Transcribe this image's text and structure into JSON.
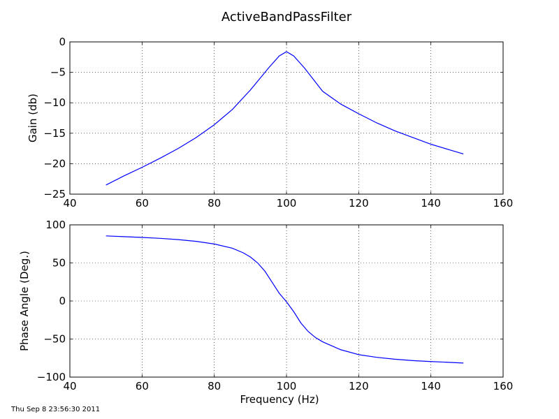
{
  "figure": {
    "title": "ActiveBandPassFilter",
    "timestamp": "Thu Sep  8 23:56:30 2011",
    "line_color": "#0000ff"
  },
  "chart_data": [
    {
      "type": "line",
      "title": "",
      "xlabel": "",
      "ylabel": "Gain (db)",
      "xlim": [
        40,
        160
      ],
      "ylim": [
        -25,
        0
      ],
      "xticks": [
        40,
        60,
        80,
        100,
        120,
        140,
        160
      ],
      "yticks": [
        -25,
        -20,
        -15,
        -10,
        -5,
        0
      ],
      "xtick_labels": [
        "40",
        "60",
        "80",
        "100",
        "120",
        "140",
        "160"
      ],
      "ytick_labels": [
        "−25",
        "−20",
        "−15",
        "−10",
        "−5",
        "0"
      ],
      "grid": true,
      "series": [
        {
          "x": [
            50,
            55,
            60,
            65,
            70,
            75,
            80,
            85,
            90,
            95,
            98,
            100,
            102,
            105,
            110,
            115,
            120,
            125,
            130,
            135,
            140,
            145,
            149
          ],
          "y": [
            -23.5,
            -22.0,
            -20.6,
            -19.1,
            -17.5,
            -15.7,
            -13.6,
            -11.1,
            -7.9,
            -4.3,
            -2.3,
            -1.6,
            -2.3,
            -4.3,
            -8.1,
            -10.2,
            -11.8,
            -13.3,
            -14.6,
            -15.7,
            -16.8,
            -17.7,
            -18.4
          ]
        }
      ]
    },
    {
      "type": "line",
      "title": "",
      "xlabel": "Frequency (Hz)",
      "ylabel": "Phase Angle (Deg.)",
      "xlim": [
        40,
        160
      ],
      "ylim": [
        -100,
        100
      ],
      "xticks": [
        40,
        60,
        80,
        100,
        120,
        140,
        160
      ],
      "yticks": [
        -100,
        -50,
        0,
        50,
        100
      ],
      "xtick_labels": [
        "40",
        "60",
        "80",
        "100",
        "120",
        "140",
        "160"
      ],
      "ytick_labels": [
        "−100",
        "−50",
        "0",
        "50",
        "100"
      ],
      "grid": true,
      "series": [
        {
          "x": [
            50,
            55,
            60,
            65,
            70,
            75,
            80,
            85,
            88,
            90,
            92,
            94,
            96,
            98,
            100,
            102,
            104,
            106,
            108,
            110,
            115,
            120,
            125,
            130,
            135,
            140,
            145,
            149
          ],
          "y": [
            85.5,
            84.5,
            83.5,
            82.3,
            80.6,
            78.3,
            74.9,
            69.3,
            63.3,
            57.8,
            50.0,
            39.3,
            24.7,
            10.1,
            -1.0,
            -14.0,
            -29.0,
            -40.0,
            -48.0,
            -53.6,
            -64.0,
            -70.5,
            -74.0,
            -76.5,
            -78.3,
            -79.6,
            -80.6,
            -81.5
          ]
        }
      ]
    }
  ]
}
